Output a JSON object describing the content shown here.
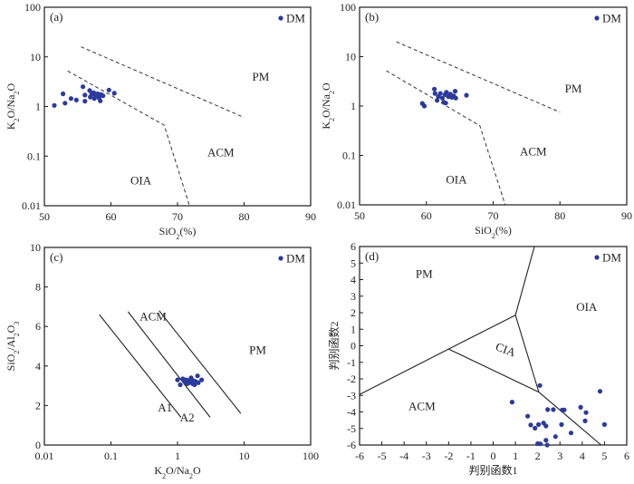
{
  "chart_data": [
    {
      "id": "a",
      "type": "scatter",
      "panel_label": "(a)",
      "xlabel": "SiO2(%)",
      "ylabel": "K2O/Na2O",
      "xlim": [
        50,
        90
      ],
      "ylim": [
        0.01,
        100
      ],
      "yscale": "log",
      "xticks": [
        50,
        60,
        70,
        80,
        90
      ],
      "yticks": [
        0.01,
        0.1,
        1,
        10,
        100
      ],
      "xtick_labels": [
        "50",
        "60",
        "70",
        "80",
        "90"
      ],
      "ytick_labels": [
        "0.01",
        "0.1",
        "1",
        "10",
        "100"
      ],
      "legend": {
        "label": "DM",
        "position": "top-right"
      },
      "marker_color": "#2b3a9c",
      "series": [
        {
          "name": "DM",
          "points": [
            [
              51.5,
              1.05
            ],
            [
              52.8,
              1.8
            ],
            [
              53.1,
              1.17
            ],
            [
              54.0,
              1.45
            ],
            [
              54.8,
              1.35
            ],
            [
              55.8,
              2.5
            ],
            [
              56.1,
              1.7
            ],
            [
              56.1,
              1.28
            ],
            [
              56.8,
              2.1
            ],
            [
              57.1,
              1.75
            ],
            [
              57.4,
              1.9
            ],
            [
              57.7,
              1.6
            ],
            [
              58.0,
              1.8
            ],
            [
              58.2,
              1.5
            ],
            [
              58.5,
              1.75
            ],
            [
              58.8,
              1.65
            ],
            [
              56.9,
              1.55
            ],
            [
              57.5,
              1.45
            ],
            [
              58.4,
              1.3
            ],
            [
              59.7,
              2.15
            ],
            [
              60.5,
              1.85
            ]
          ]
        }
      ],
      "boundaries": [
        {
          "style": "dashed",
          "points": [
            [
              55.5,
              16
            ],
            [
              80,
              0.6
            ]
          ]
        },
        {
          "style": "dashed",
          "points": [
            [
              53.5,
              5.2
            ],
            [
              68,
              0.42
            ],
            [
              71.8,
              0.01
            ]
          ]
        }
      ],
      "regions": [
        {
          "label": "PM",
          "x": 82.5,
          "y": 3.3
        },
        {
          "label": "ACM",
          "x": 76.5,
          "y": 0.1
        },
        {
          "label": "OIA",
          "x": 64.5,
          "y": 0.027
        }
      ]
    },
    {
      "id": "b",
      "type": "scatter",
      "panel_label": "(b)",
      "xlabel": "SiO2(%)",
      "ylabel": "K2O/Na2O",
      "xlim": [
        50,
        90
      ],
      "ylim": [
        0.01,
        100
      ],
      "yscale": "log",
      "xticks": [
        50,
        60,
        70,
        80,
        90
      ],
      "yticks": [
        0.01,
        0.1,
        1,
        10,
        100
      ],
      "xtick_labels": [
        "50",
        "60",
        "70",
        "80",
        "90"
      ],
      "ytick_labels": [
        "0.01",
        "0.1",
        "1",
        "10",
        "100"
      ],
      "legend": {
        "label": "DM",
        "position": "top-right"
      },
      "marker_color": "#2b3a9c",
      "series": [
        {
          "name": "DM",
          "points": [
            [
              59.4,
              1.13
            ],
            [
              59.7,
              1.0
            ],
            [
              61.2,
              2.2
            ],
            [
              61.3,
              1.8
            ],
            [
              61.6,
              1.3
            ],
            [
              61.8,
              1.55
            ],
            [
              62.1,
              1.8
            ],
            [
              62.4,
              1.45
            ],
            [
              62.6,
              1.2
            ],
            [
              62.8,
              1.7
            ],
            [
              63.0,
              1.9
            ],
            [
              63.3,
              1.55
            ],
            [
              63.6,
              1.75
            ],
            [
              63.8,
              1.5
            ],
            [
              64.1,
              1.6
            ],
            [
              64.3,
              2.0
            ],
            [
              64.4,
              1.45
            ],
            [
              62.9,
              1.15
            ],
            [
              66.0,
              1.65
            ]
          ]
        }
      ],
      "boundaries": [
        {
          "style": "dashed",
          "points": [
            [
              55.5,
              20
            ],
            [
              80,
              0.75
            ]
          ]
        },
        {
          "style": "dashed",
          "points": [
            [
              54,
              5.2
            ],
            [
              68,
              0.4
            ],
            [
              71.8,
              0.01
            ]
          ]
        }
      ],
      "regions": [
        {
          "label": "PM",
          "x": 82,
          "y": 1.9
        },
        {
          "label": "ACM",
          "x": 76,
          "y": 0.1
        },
        {
          "label": "OIA",
          "x": 64.5,
          "y": 0.027
        }
      ]
    },
    {
      "id": "c",
      "type": "scatter",
      "panel_label": "(c)",
      "xlabel": "K2O/Na2O",
      "ylabel": "SiO2/Al2O3",
      "xlim": [
        0.01,
        100
      ],
      "xscale": "log",
      "ylim": [
        0,
        10
      ],
      "xticks": [
        0.01,
        0.1,
        1,
        10,
        100
      ],
      "yticks": [
        0,
        2,
        4,
        6,
        8,
        10
      ],
      "xtick_labels": [
        "0.01",
        "0.1",
        "1",
        "10",
        "100"
      ],
      "ytick_labels": [
        "0",
        "2",
        "4",
        "6",
        "8",
        "10"
      ],
      "legend": {
        "label": "DM",
        "position": "top-right"
      },
      "marker_color": "#2b3a9c",
      "series": [
        {
          "name": "DM",
          "points": [
            [
              1.0,
              3.3
            ],
            [
              1.1,
              3.05
            ],
            [
              1.2,
              3.35
            ],
            [
              1.3,
              3.2
            ],
            [
              1.35,
              3.3
            ],
            [
              1.45,
              3.25
            ],
            [
              1.5,
              3.15
            ],
            [
              1.55,
              3.3
            ],
            [
              1.6,
              3.4
            ],
            [
              1.65,
              3.2
            ],
            [
              1.7,
              3.1
            ],
            [
              1.75,
              3.25
            ],
            [
              1.8,
              3.05
            ],
            [
              1.9,
              3.2
            ],
            [
              2.0,
              3.5
            ],
            [
              2.05,
              3.15
            ],
            [
              2.3,
              3.3
            ],
            [
              1.4,
              3.1
            ]
          ]
        }
      ],
      "boundaries": [
        {
          "style": "solid",
          "points": [
            [
              0.067,
              6.6
            ],
            [
              1.13,
              1.4
            ]
          ]
        },
        {
          "style": "solid",
          "points": [
            [
              0.18,
              6.75
            ],
            [
              3.1,
              1.4
            ]
          ]
        },
        {
          "style": "solid",
          "points": [
            [
              0.53,
              6.8
            ],
            [
              8.9,
              1.6
            ]
          ]
        }
      ],
      "regions": [
        {
          "label": "ACM",
          "x": 0.43,
          "y": 6.3
        },
        {
          "label": "PM",
          "x": 16,
          "y": 4.6
        },
        {
          "label": "A1",
          "x": 0.65,
          "y": 1.7
        },
        {
          "label": "A2",
          "x": 1.4,
          "y": 1.2
        }
      ]
    },
    {
      "id": "d",
      "type": "scatter",
      "panel_label": "(d)",
      "xlabel": "判别函数1",
      "ylabel": "判别函数2",
      "xlim": [
        -6,
        6
      ],
      "ylim": [
        -6,
        6
      ],
      "xticks": [
        -6,
        -5,
        -4,
        -3,
        -2,
        -1,
        0,
        1,
        2,
        3,
        4,
        5,
        6
      ],
      "yticks": [
        -6,
        -5,
        -4,
        -3,
        -2,
        -1,
        0,
        1,
        2,
        3,
        4,
        5,
        6
      ],
      "xtick_labels": [
        "-6",
        "-5",
        "-4",
        "-3",
        "-2",
        "-1",
        "0",
        "1",
        "2",
        "3",
        "4",
        "5",
        "6"
      ],
      "ytick_labels": [
        "-6",
        "-5",
        "-4",
        "-3",
        "-2",
        "-1",
        "0",
        "1",
        "2",
        "3",
        "4",
        "5",
        "6"
      ],
      "legend": {
        "label": "DM",
        "position": "top-right"
      },
      "marker_color": "#2b3a9c",
      "series": [
        {
          "name": "DM",
          "points": [
            [
              2.1,
              -2.4
            ],
            [
              4.8,
              -2.75
            ],
            [
              0.85,
              -3.4
            ],
            [
              1.55,
              -4.26
            ],
            [
              1.69,
              -4.79
            ],
            [
              1.88,
              -4.98
            ],
            [
              2.04,
              -4.76
            ],
            [
              2.26,
              -4.67
            ],
            [
              2.37,
              -4.85
            ],
            [
              2.45,
              -3.86
            ],
            [
              2.7,
              -3.86
            ],
            [
              3.1,
              -3.88
            ],
            [
              3.19,
              -3.88
            ],
            [
              3.07,
              -4.76
            ],
            [
              3.5,
              -5.27
            ],
            [
              2.8,
              -5.49
            ],
            [
              3.93,
              -3.72
            ],
            [
              4.17,
              -4.04
            ],
            [
              4.13,
              -4.54
            ],
            [
              5.0,
              -4.76
            ],
            [
              2.12,
              -5.93
            ],
            [
              2.37,
              -5.71
            ],
            [
              2.43,
              -6.0
            ],
            [
              2.0,
              -5.92
            ]
          ]
        }
      ],
      "boundaries": [
        {
          "style": "solid",
          "points": [
            [
              -6,
              -2.95
            ],
            [
              -2,
              -0.2
            ],
            [
              1,
              1.85
            ]
          ]
        },
        {
          "style": "solid",
          "points": [
            [
              1,
              1.85
            ],
            [
              1.85,
              6
            ]
          ]
        },
        {
          "style": "solid",
          "points": [
            [
              1,
              1.85
            ],
            [
              2.05,
              -2.8
            ]
          ]
        },
        {
          "style": "solid",
          "points": [
            [
              -2,
              -0.2
            ],
            [
              2.05,
              -2.8
            ]
          ]
        },
        {
          "style": "solid",
          "points": [
            [
              2.05,
              -2.8
            ],
            [
              4.85,
              -6
            ]
          ]
        }
      ],
      "regions": [
        {
          "label": "PM",
          "x": -3.1,
          "y": 4.1
        },
        {
          "label": "OIA",
          "x": 4.2,
          "y": 2.1
        },
        {
          "label": "CIA",
          "x": 0.5,
          "y": -0.45,
          "rotate": 20
        },
        {
          "label": "ACM",
          "x": -3.2,
          "y": -3.9
        }
      ]
    }
  ]
}
